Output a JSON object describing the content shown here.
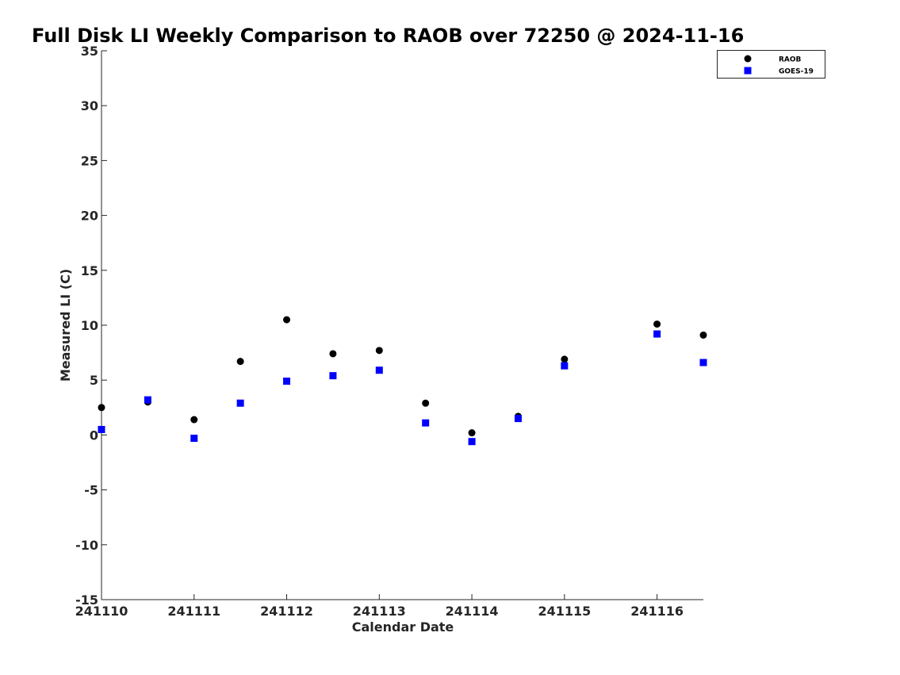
{
  "chart_data": {
    "type": "scatter",
    "title": "Full Disk LI Weekly Comparison to RAOB over 72250 @ 2024-11-16",
    "xlabel": "Calendar Date",
    "ylabel": "Measured LI (C)",
    "xlim": [
      "2024-11-10 00:00",
      "2024-11-16 12:00"
    ],
    "ylim": [
      -15,
      35
    ],
    "yticks": [
      35,
      30,
      25,
      20,
      15,
      10,
      5,
      0,
      -5,
      -10,
      -15
    ],
    "yticklabels": [
      "35",
      "30",
      "25",
      "20",
      "15",
      "10",
      "5",
      "0",
      "-5",
      "-10",
      "-15"
    ],
    "xticks": [
      "2024-11-10",
      "2024-11-11",
      "2024-11-12",
      "2024-11-13",
      "2024-11-14",
      "2024-11-15",
      "2024-11-16"
    ],
    "xticklabels": [
      "241110",
      "241111",
      "241112",
      "241113",
      "241114",
      "241115",
      "241116"
    ],
    "grid": false,
    "legend_position": "top-right",
    "series": [
      {
        "name": "RAOB",
        "marker": "circle",
        "color": "#000000",
        "points": [
          {
            "x": "2024-11-10 00:00",
            "y": 2.5
          },
          {
            "x": "2024-11-10 12:00",
            "y": 3.0
          },
          {
            "x": "2024-11-11 00:00",
            "y": 1.4
          },
          {
            "x": "2024-11-11 12:00",
            "y": 6.7
          },
          {
            "x": "2024-11-12 00:00",
            "y": 10.5
          },
          {
            "x": "2024-11-12 12:00",
            "y": 7.4
          },
          {
            "x": "2024-11-13 00:00",
            "y": 7.7
          },
          {
            "x": "2024-11-13 12:00",
            "y": 2.9
          },
          {
            "x": "2024-11-14 00:00",
            "y": 0.2
          },
          {
            "x": "2024-11-14 12:00",
            "y": 1.7
          },
          {
            "x": "2024-11-15 00:00",
            "y": 6.9
          },
          {
            "x": "2024-11-16 00:00",
            "y": 10.1
          },
          {
            "x": "2024-11-16 12:00",
            "y": 9.1
          }
        ]
      },
      {
        "name": "GOES-19",
        "marker": "square",
        "color": "#0000ff",
        "points": [
          {
            "x": "2024-11-10 00:00",
            "y": 0.5
          },
          {
            "x": "2024-11-10 12:00",
            "y": 3.2
          },
          {
            "x": "2024-11-11 00:00",
            "y": -0.3
          },
          {
            "x": "2024-11-11 12:00",
            "y": 2.9
          },
          {
            "x": "2024-11-12 00:00",
            "y": 4.9
          },
          {
            "x": "2024-11-12 12:00",
            "y": 5.4
          },
          {
            "x": "2024-11-13 00:00",
            "y": 5.9
          },
          {
            "x": "2024-11-13 12:00",
            "y": 1.1
          },
          {
            "x": "2024-11-14 00:00",
            "y": -0.6
          },
          {
            "x": "2024-11-14 12:00",
            "y": 1.5
          },
          {
            "x": "2024-11-15 00:00",
            "y": 6.3
          },
          {
            "x": "2024-11-16 00:00",
            "y": 9.2
          },
          {
            "x": "2024-11-16 12:00",
            "y": 6.6
          }
        ]
      }
    ]
  }
}
